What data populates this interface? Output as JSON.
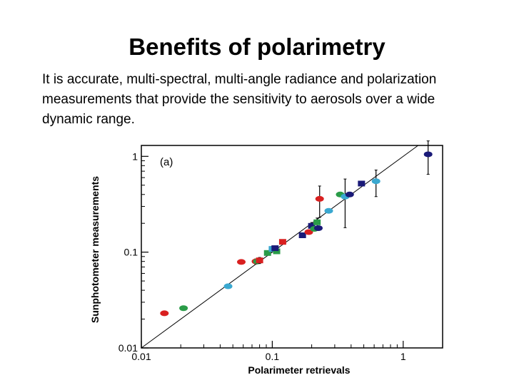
{
  "slide": {
    "title": "Benefits of polarimetry",
    "body": "It is accurate, multi-spectral, multi-angle radiance and polarization measurements that provide the sensitivity to aerosols over a wide dynamic range."
  },
  "chart_data": {
    "type": "scatter",
    "panel_label": "(a)",
    "xlabel": "Polarimeter retrievals",
    "ylabel": "Sunphotometer measurements",
    "xscale": "log",
    "yscale": "log",
    "xlim": [
      0.01,
      2
    ],
    "ylim": [
      0.01,
      1.3
    ],
    "xticks": [
      {
        "value": 0.01,
        "label": "0.01"
      },
      {
        "value": 0.1,
        "label": "0.1"
      },
      {
        "value": 1,
        "label": "1"
      }
    ],
    "yticks": [
      {
        "value": 0.01,
        "label": "0.01"
      },
      {
        "value": 0.1,
        "label": "0.1"
      },
      {
        "value": 1,
        "label": "1"
      }
    ],
    "reference_line": "1:1",
    "colors": {
      "red": "#d92020",
      "green": "#2a9c48",
      "cyan": "#3aa8d0",
      "navy": "#1a1a78",
      "line": "#000000"
    },
    "points": [
      {
        "x": 0.015,
        "y": 0.023,
        "color": "red",
        "shape": "ellipse",
        "err": 0
      },
      {
        "x": 0.021,
        "y": 0.026,
        "color": "green",
        "shape": "ellipse",
        "err": 0
      },
      {
        "x": 0.046,
        "y": 0.044,
        "color": "cyan",
        "shape": "ellipse",
        "err": 0
      },
      {
        "x": 0.058,
        "y": 0.079,
        "color": "red",
        "shape": "ellipse",
        "err": 0
      },
      {
        "x": 0.075,
        "y": 0.08,
        "color": "red",
        "shape": "ellipse",
        "err": 0.005
      },
      {
        "x": 0.077,
        "y": 0.08,
        "color": "green",
        "shape": "ellipse",
        "err": 0
      },
      {
        "x": 0.08,
        "y": 0.082,
        "color": "red",
        "shape": "square",
        "err": 0.006
      },
      {
        "x": 0.092,
        "y": 0.098,
        "color": "green",
        "shape": "square",
        "err": 0.004
      },
      {
        "x": 0.1,
        "y": 0.108,
        "color": "cyan",
        "shape": "square",
        "err": 0.007
      },
      {
        "x": 0.108,
        "y": 0.102,
        "color": "green",
        "shape": "square",
        "err": 0.005
      },
      {
        "x": 0.105,
        "y": 0.11,
        "color": "navy",
        "shape": "square",
        "err": 0.006
      },
      {
        "x": 0.12,
        "y": 0.128,
        "color": "red",
        "shape": "square",
        "err": 0
      },
      {
        "x": 0.17,
        "y": 0.15,
        "color": "navy",
        "shape": "square",
        "err": 0
      },
      {
        "x": 0.19,
        "y": 0.162,
        "color": "red",
        "shape": "ellipse",
        "err": 0
      },
      {
        "x": 0.2,
        "y": 0.188,
        "color": "navy",
        "shape": "square",
        "err": 0.016
      },
      {
        "x": 0.21,
        "y": 0.175,
        "color": "green",
        "shape": "ellipse",
        "err": 0
      },
      {
        "x": 0.22,
        "y": 0.205,
        "color": "green",
        "shape": "square",
        "err": 0.022
      },
      {
        "x": 0.225,
        "y": 0.178,
        "color": "navy",
        "shape": "ellipse",
        "err": 0
      },
      {
        "x": 0.23,
        "y": 0.36,
        "color": "red",
        "shape": "ellipse",
        "err": 0.13
      },
      {
        "x": 0.27,
        "y": 0.27,
        "color": "cyan",
        "shape": "ellipse",
        "err": 0
      },
      {
        "x": 0.33,
        "y": 0.4,
        "color": "green",
        "shape": "ellipse",
        "err": 0
      },
      {
        "x": 0.36,
        "y": 0.38,
        "color": "cyan",
        "shape": "ellipse",
        "err": 0.2
      },
      {
        "x": 0.39,
        "y": 0.4,
        "color": "navy",
        "shape": "ellipse",
        "err": 0
      },
      {
        "x": 0.48,
        "y": 0.52,
        "color": "navy",
        "shape": "square",
        "err": 0
      },
      {
        "x": 0.62,
        "y": 0.55,
        "color": "cyan",
        "shape": "ellipse",
        "err": 0.17
      },
      {
        "x": 1.55,
        "y": 1.05,
        "color": "navy",
        "shape": "ellipse",
        "err": 0.4
      }
    ]
  }
}
